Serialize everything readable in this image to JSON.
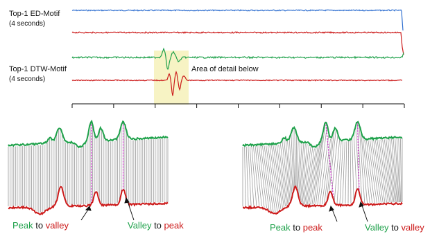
{
  "labels": {
    "ed_title": "Top-1 ED-Motif",
    "ed_sub": "(4 seconds)",
    "dtw_title": "Top-1 DTW-Motif",
    "dtw_sub": "(4 seconds)",
    "area_note": "Area of detail below"
  },
  "captions": {
    "left_1": {
      "a": "Peak",
      "mid": " to ",
      "b": "valley"
    },
    "left_2": {
      "a": "Valley",
      "mid": " to ",
      "b": "peak"
    },
    "right_1": {
      "a": "Peak",
      "mid": " to ",
      "b": "peak"
    },
    "right_2": {
      "a": "Valley",
      "mid": " to ",
      "b": "valley"
    }
  },
  "colors": {
    "blue": "#2f6fd0",
    "red": "#cc1a1a",
    "green": "#1ea14a",
    "gray": "#9a9a9a",
    "magenta": "#cc33cc",
    "highlight": "#f7f3c4",
    "black": "#111111"
  }
}
